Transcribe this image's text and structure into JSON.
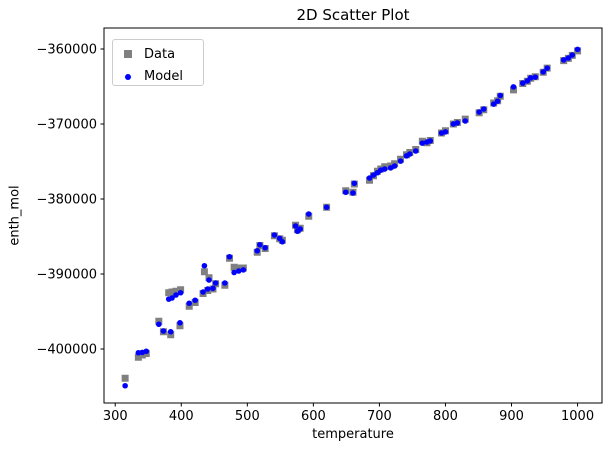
{
  "colors": {
    "data_series": "#808080",
    "model_series": "#0000ff",
    "axis": "#000000",
    "legend_border": "#cccccc",
    "background": "#ffffff"
  },
  "chart_data": {
    "type": "scatter",
    "title": "2D Scatter Plot",
    "xlabel": "temperature",
    "ylabel": "enth_mol",
    "legend_position": "upper left",
    "grid": false,
    "xlim": [
      283,
      1037
    ],
    "ylim": [
      -407200,
      -357200
    ],
    "x_ticks": [
      300,
      400,
      500,
      600,
      700,
      800,
      900,
      1000
    ],
    "y_ticks": [
      -360000,
      -370000,
      -380000,
      -390000,
      -400000
    ],
    "x": [
      315,
      335,
      341,
      347,
      366,
      373,
      381,
      384,
      386,
      392,
      398,
      399,
      412,
      421,
      433,
      435,
      440,
      442,
      448,
      452,
      466,
      473,
      480,
      487,
      494,
      515,
      519,
      527,
      541,
      549,
      553,
      573,
      576,
      580,
      593,
      620,
      649,
      660,
      662,
      685,
      691,
      697,
      702,
      708,
      717,
      723,
      732,
      741,
      746,
      755,
      765,
      772,
      777,
      794,
      800,
      812,
      818,
      830,
      851,
      858,
      873,
      879,
      883,
      903,
      917,
      924,
      929,
      936,
      948,
      954,
      979,
      986,
      992,
      1000
    ],
    "series": [
      {
        "name": "Data",
        "marker": "square",
        "color": "#808080",
        "values": [
          -403900,
          -401100,
          -400800,
          -400600,
          -396300,
          -397700,
          -392500,
          -398100,
          -392400,
          -392300,
          -396900,
          -392100,
          -394300,
          -393800,
          -392600,
          -389700,
          -392200,
          -390500,
          -392000,
          -391300,
          -391500,
          -387900,
          -389100,
          -389200,
          -389200,
          -387100,
          -386200,
          -386600,
          -384900,
          -385300,
          -385500,
          -383500,
          -384100,
          -383900,
          -382300,
          -381100,
          -378900,
          -379100,
          -378000,
          -377500,
          -376900,
          -376300,
          -376000,
          -375700,
          -375600,
          -375300,
          -374700,
          -374100,
          -373800,
          -373400,
          -372300,
          -372500,
          -372200,
          -371200,
          -370900,
          -370000,
          -369800,
          -369350,
          -368500,
          -368100,
          -367200,
          -366900,
          -366300,
          -365450,
          -364600,
          -364300,
          -363900,
          -363700,
          -363100,
          -362550,
          -361550,
          -361250,
          -360850,
          -360250
        ]
      },
      {
        "name": "Model",
        "marker": "dot",
        "color": "#0000ff",
        "values": [
          -404900,
          -400500,
          -400450,
          -400300,
          -396700,
          -397600,
          -393350,
          -397700,
          -393200,
          -392800,
          -396500,
          -392500,
          -393900,
          -393500,
          -392400,
          -388900,
          -392000,
          -390800,
          -391900,
          -391200,
          -391200,
          -387700,
          -389800,
          -389600,
          -389450,
          -386900,
          -386100,
          -386500,
          -384800,
          -385250,
          -385700,
          -383600,
          -384300,
          -384000,
          -382000,
          -381100,
          -379100,
          -379200,
          -377900,
          -377200,
          -376800,
          -376500,
          -376150,
          -376000,
          -375850,
          -375600,
          -374950,
          -374250,
          -374000,
          -373600,
          -372550,
          -372400,
          -372250,
          -371200,
          -371050,
          -370000,
          -369850,
          -369600,
          -368400,
          -368000,
          -367350,
          -366950,
          -366200,
          -365050,
          -364550,
          -364250,
          -363850,
          -363750,
          -363050,
          -362550,
          -361450,
          -361200,
          -360800,
          -360050
        ]
      }
    ]
  }
}
